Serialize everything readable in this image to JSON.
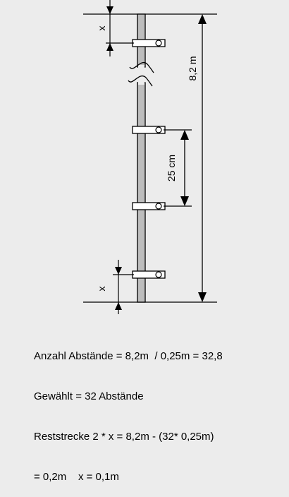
{
  "diagram": {
    "labels": {
      "total_height": "8,2 m",
      "spacing": "25 cm",
      "gap_top": "x",
      "gap_bottom": "x"
    },
    "calculation": {
      "line1": "Anzahl Abstände = 8,2m  / 0,25m = 32,8",
      "line2": "Gewählt = 32 Abstände",
      "line3": "Reststrecke 2 * x = 8,2m - (32* 0,25m)",
      "line4": "= 0,2m    x = 0,1m"
    }
  }
}
